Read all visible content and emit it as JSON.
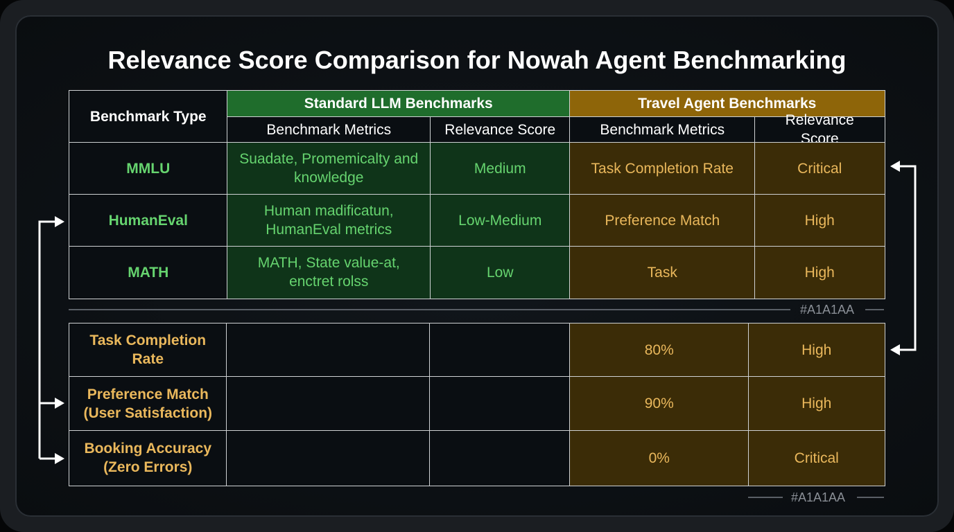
{
  "title": "Relevance Score Comparison for Nowah Agent Benchmarking",
  "table_top": {
    "corner": "Benchmark Type",
    "groups": [
      "Standard LLM Benchmarks",
      "Travel Agent Benchmarks"
    ],
    "subheaders": [
      "Benchmark Metrics",
      "Relevance Score",
      "Benchmark Metrics",
      "Relevance Score"
    ],
    "rows": [
      [
        "MMLU",
        "Suadate, Promemicalty and knowledge",
        "Medium",
        "Task Completion Rate",
        "Critical"
      ],
      [
        "HumanEval",
        "Human madificatun, HumanEval metrics",
        "Low-Medium",
        "Preference Match",
        "High"
      ],
      [
        "MATH",
        "MATH, State value-at, enctret rolss",
        "Low",
        "Task",
        "High"
      ]
    ]
  },
  "divider_label": "#A1A1AA",
  "table_bottom": {
    "rows": [
      {
        "label": "Task Completion Rate",
        "metric": "80%",
        "relevance": "High"
      },
      {
        "label": "Preference Match (User Satisfaction)",
        "metric": "90%",
        "relevance": "High"
      },
      {
        "label": "Booking Accuracy (Zero Errors)",
        "metric": "0%",
        "relevance": "Critical"
      }
    ]
  },
  "footer_label": "#A1A1AA"
}
